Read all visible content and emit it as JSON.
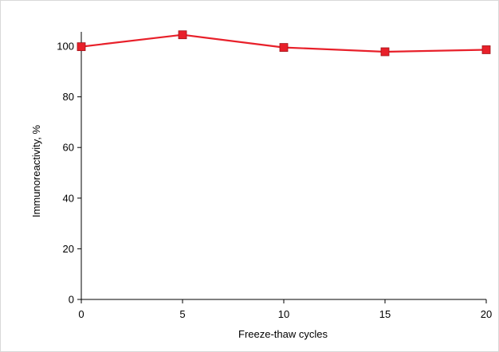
{
  "chart_data": {
    "type": "line",
    "title": "",
    "xlabel": "Freeze-thaw cycles",
    "ylabel": "Immunoreactivity, %",
    "x": [
      0,
      5,
      10,
      15,
      20
    ],
    "series": [
      {
        "values": [
          99.8,
          104.5,
          99.5,
          97.8,
          98.6
        ],
        "color": "#e8202a",
        "marker": "square"
      }
    ],
    "xlim": [
      0,
      20
    ],
    "ylim": [
      0,
      105
    ],
    "xticks": [
      0,
      5,
      10,
      15,
      20
    ],
    "yticks": [
      0,
      20,
      40,
      60,
      80,
      100
    ],
    "xtick_labels": [
      "0",
      "5",
      "10",
      "15",
      "20"
    ],
    "ytick_labels": [
      "0",
      "20",
      "40",
      "60",
      "80",
      "100"
    ],
    "grid": false,
    "legend": "none"
  }
}
